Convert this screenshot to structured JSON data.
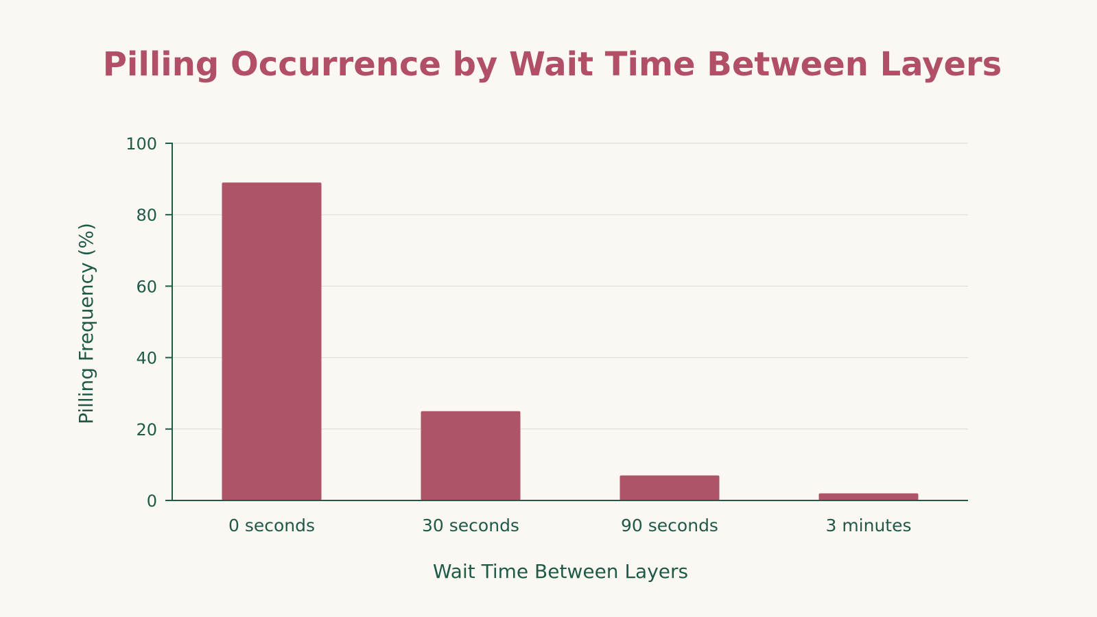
{
  "chart_data": {
    "type": "bar",
    "title": "Pilling Occurrence by Wait Time Between Layers",
    "xlabel": "Wait Time Between Layers",
    "ylabel": "Pilling Frequency (%)",
    "categories": [
      "0 seconds",
      "30 seconds",
      "90 seconds",
      "3 minutes"
    ],
    "values": [
      89,
      25,
      7,
      2
    ],
    "ylim": [
      0,
      100
    ],
    "yticks": [
      0,
      20,
      40,
      60,
      80,
      100
    ],
    "grid": true,
    "legend": "none",
    "colors": {
      "bar": "#ad5566",
      "title": "#b04f66",
      "text": "#1f5a47",
      "grid": "#dcd8d2",
      "background": "#fbf7f2"
    }
  }
}
